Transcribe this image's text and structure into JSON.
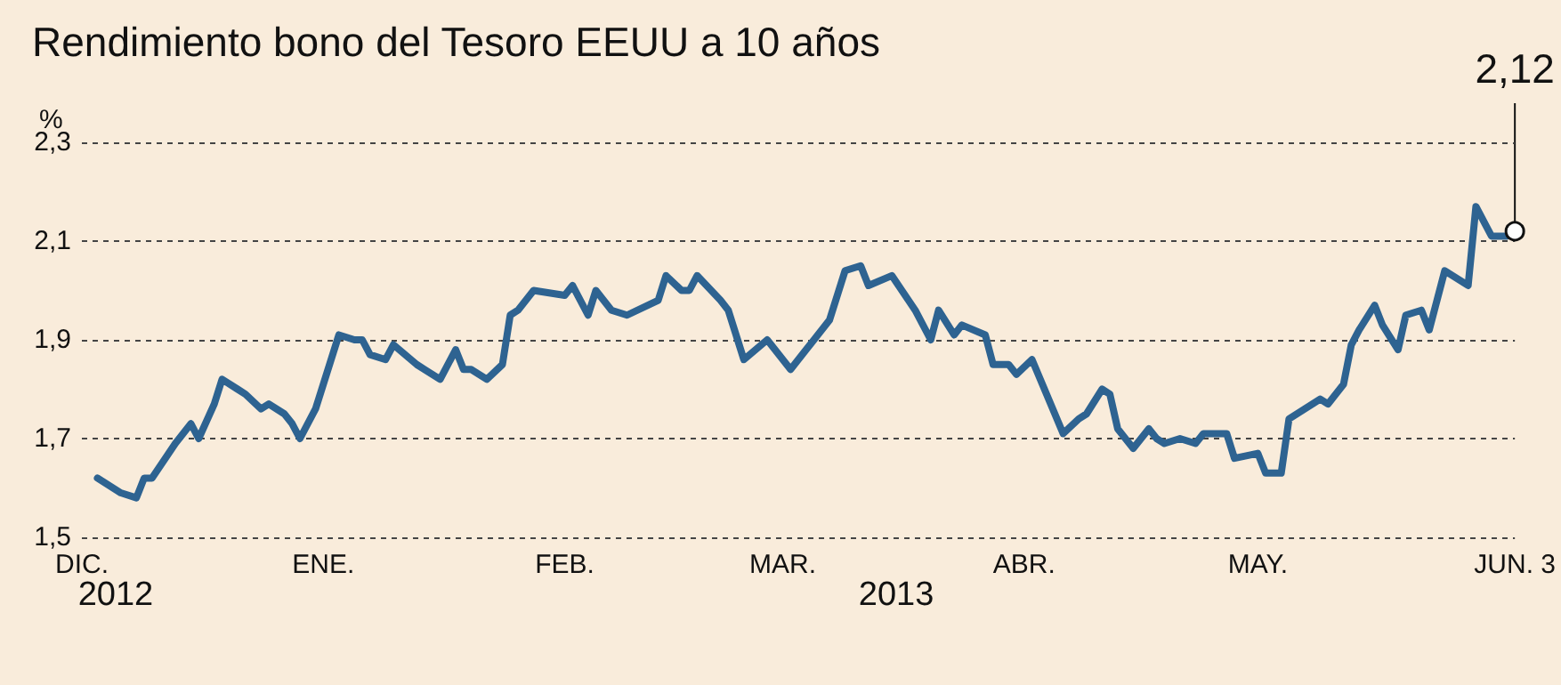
{
  "chart_data": {
    "type": "line",
    "title": "Rendimiento bono del Tesoro EEUU a 10 años",
    "ylabel": "%",
    "annotations": [
      "2012",
      "2013",
      {
        "text": "2,12",
        "x": "2013-06-03",
        "y": 2.12
      }
    ],
    "xlim": [
      "2012-12-01",
      "2013-06-03"
    ],
    "xticks": [
      {
        "value": "2012-12-01",
        "label": "DIC."
      },
      {
        "value": "2013-01-01",
        "label": "ENE."
      },
      {
        "value": "2013-02-01",
        "label": "FEB."
      },
      {
        "value": "2013-03-01",
        "label": "MAR."
      },
      {
        "value": "2013-04-01",
        "label": "ABR."
      },
      {
        "value": "2013-05-01",
        "label": "MAY."
      },
      {
        "value": "2013-06-03",
        "label": "JUN. 3"
      }
    ],
    "ylim": [
      1.5,
      2.3
    ],
    "yticks": [
      {
        "value": 1.5,
        "label": "1,5"
      },
      {
        "value": 1.7,
        "label": "1,7"
      },
      {
        "value": 1.9,
        "label": "1,9"
      },
      {
        "value": 2.1,
        "label": "2,1"
      },
      {
        "value": 2.3,
        "label": "2,3"
      }
    ],
    "grid": "y",
    "x": [
      "2012-12-03",
      "2012-12-06",
      "2012-12-08",
      "2012-12-09",
      "2012-12-10",
      "2012-12-13",
      "2012-12-15",
      "2012-12-16",
      "2012-12-18",
      "2012-12-19",
      "2012-12-21",
      "2012-12-22",
      "2012-12-24",
      "2012-12-25",
      "2012-12-27",
      "2012-12-28",
      "2012-12-29",
      "2012-12-31",
      "2013-01-03",
      "2013-01-05",
      "2013-01-06",
      "2013-01-07",
      "2013-01-09",
      "2013-01-10",
      "2013-01-13",
      "2013-01-14",
      "2013-01-16",
      "2013-01-18",
      "2013-01-19",
      "2013-01-20",
      "2013-01-22",
      "2013-01-24",
      "2013-01-25",
      "2013-01-26",
      "2013-01-28",
      "2013-02-01",
      "2013-02-02",
      "2013-02-04",
      "2013-02-05",
      "2013-02-07",
      "2013-02-09",
      "2013-02-13",
      "2013-02-14",
      "2013-02-16",
      "2013-02-17",
      "2013-02-18",
      "2013-02-21",
      "2013-02-22",
      "2013-02-24",
      "2013-02-27",
      "2013-03-02",
      "2013-03-04",
      "2013-03-05",
      "2013-03-07",
      "2013-03-09",
      "2013-03-11",
      "2013-03-12",
      "2013-03-15",
      "2013-03-18",
      "2013-03-20",
      "2013-03-21",
      "2013-03-23",
      "2013-03-24",
      "2013-03-27",
      "2013-03-28",
      "2013-03-30",
      "2013-03-31",
      "2013-04-02",
      "2013-04-06",
      "2013-04-08",
      "2013-04-09",
      "2013-04-11",
      "2013-04-12",
      "2013-04-13",
      "2013-04-15",
      "2013-04-17",
      "2013-04-18",
      "2013-04-19",
      "2013-04-21",
      "2013-04-23",
      "2013-04-24",
      "2013-04-27",
      "2013-04-28",
      "2013-05-01",
      "2013-05-02",
      "2013-05-04",
      "2013-05-05",
      "2013-05-09",
      "2013-05-10",
      "2013-05-12",
      "2013-05-13",
      "2013-05-14",
      "2013-05-16",
      "2013-05-17",
      "2013-05-19",
      "2013-05-20",
      "2013-05-22",
      "2013-05-23",
      "2013-05-25",
      "2013-05-28",
      "2013-05-29",
      "2013-05-31",
      "2013-06-02",
      "2013-06-03"
    ],
    "series": [
      {
        "color": "#2e6391",
        "values": [
          1.62,
          1.59,
          1.58,
          1.62,
          1.62,
          1.69,
          1.73,
          1.7,
          1.77,
          1.82,
          1.8,
          1.79,
          1.76,
          1.77,
          1.75,
          1.73,
          1.7,
          1.76,
          1.91,
          1.9,
          1.9,
          1.87,
          1.86,
          1.89,
          1.85,
          1.84,
          1.82,
          1.88,
          1.84,
          1.84,
          1.82,
          1.85,
          1.95,
          1.96,
          2.0,
          1.99,
          2.01,
          1.95,
          2.0,
          1.96,
          1.95,
          1.98,
          2.03,
          2.0,
          2.0,
          2.03,
          1.98,
          1.96,
          1.86,
          1.9,
          1.84,
          1.88,
          1.9,
          1.94,
          2.04,
          2.05,
          2.01,
          2.03,
          1.96,
          1.9,
          1.96,
          1.91,
          1.93,
          1.91,
          1.85,
          1.85,
          1.83,
          1.86,
          1.71,
          1.74,
          1.75,
          1.8,
          1.79,
          1.72,
          1.68,
          1.72,
          1.7,
          1.69,
          1.7,
          1.69,
          1.71,
          1.71,
          1.66,
          1.67,
          1.63,
          1.63,
          1.74,
          1.78,
          1.77,
          1.81,
          1.89,
          1.92,
          1.97,
          1.93,
          1.88,
          1.95,
          1.96,
          1.92,
          2.04,
          2.01,
          2.17,
          2.11,
          2.11,
          2.12
        ]
      }
    ]
  }
}
